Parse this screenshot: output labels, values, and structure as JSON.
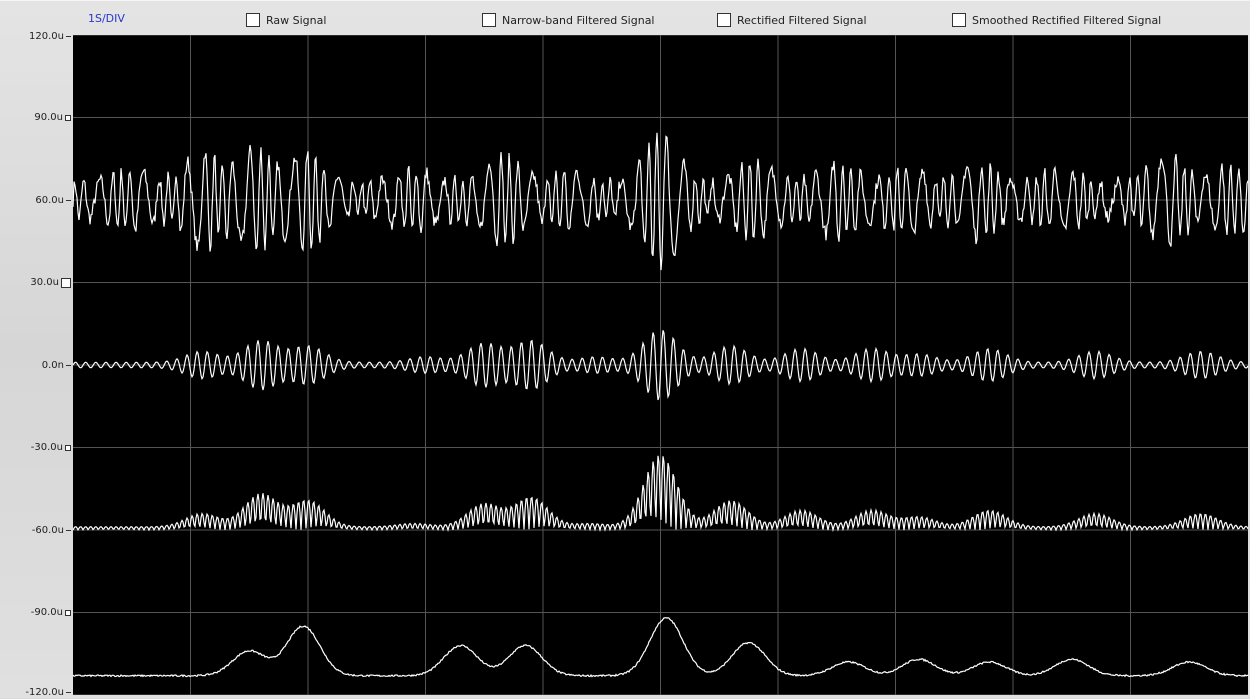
{
  "header": {
    "div_label": "1S/DIV",
    "legend": [
      {
        "label": "Raw Signal",
        "checked": false
      },
      {
        "label": "Narrow-band Filtered Signal",
        "checked": false
      },
      {
        "label": "Rectified Filtered Signal",
        "checked": false
      },
      {
        "label": "Smoothed Rectified Filtered Signal",
        "checked": false
      }
    ]
  },
  "chart_data": {
    "type": "line",
    "title": "",
    "xlabel": "",
    "ylabel": "",
    "ylim": [
      -120,
      120
    ],
    "y_unit": "u",
    "x_per_division": "1S/DIV",
    "grid": true,
    "y_ticks": [
      {
        "value": 120,
        "label": "120.0u",
        "marker": "dash"
      },
      {
        "value": 90,
        "label": "90.0u",
        "marker": "box"
      },
      {
        "value": 60,
        "label": "60.0u",
        "marker": "dash"
      },
      {
        "value": 30,
        "label": "30.0u",
        "marker": "big-box"
      },
      {
        "value": 0,
        "label": "0.0n",
        "marker": "dash"
      },
      {
        "value": -30,
        "label": "-30.0u",
        "marker": "box"
      },
      {
        "value": -60,
        "label": "-60.0u",
        "marker": "dash"
      },
      {
        "value": -90,
        "label": "-90.0u",
        "marker": "box"
      },
      {
        "value": -120,
        "label": "-120.0u",
        "marker": "dash"
      }
    ],
    "series": [
      {
        "offset": 60,
        "peaks": [
          [
            0.05,
            6
          ],
          [
            0.11,
            14
          ],
          [
            0.155,
            15
          ],
          [
            0.2,
            14
          ],
          [
            0.29,
            6
          ],
          [
            0.365,
            12
          ],
          [
            0.42,
            6
          ],
          [
            0.5,
            22
          ],
          [
            0.58,
            9
          ],
          [
            0.65,
            9
          ],
          [
            0.71,
            8
          ],
          [
            0.77,
            9
          ],
          [
            0.84,
            6
          ],
          [
            0.93,
            12
          ],
          [
            0.985,
            8
          ]
        ],
        "base": 5
      },
      {
        "offset": 0,
        "peaks": [
          [
            0.11,
            4
          ],
          [
            0.16,
            8
          ],
          [
            0.2,
            6
          ],
          [
            0.3,
            2
          ],
          [
            0.35,
            7
          ],
          [
            0.39,
            8
          ],
          [
            0.445,
            2
          ],
          [
            0.5,
            12
          ],
          [
            0.56,
            6
          ],
          [
            0.62,
            5
          ],
          [
            0.68,
            5
          ],
          [
            0.72,
            3
          ],
          [
            0.78,
            5
          ],
          [
            0.87,
            4
          ],
          [
            0.96,
            4
          ]
        ],
        "base": 1
      },
      {
        "offset": -60,
        "peaks": [
          [
            0.11,
            4
          ],
          [
            0.16,
            10
          ],
          [
            0.2,
            8
          ],
          [
            0.29,
            1
          ],
          [
            0.35,
            7
          ],
          [
            0.39,
            9
          ],
          [
            0.44,
            1
          ],
          [
            0.5,
            22
          ],
          [
            0.56,
            8
          ],
          [
            0.62,
            5
          ],
          [
            0.68,
            5
          ],
          [
            0.72,
            3
          ],
          [
            0.78,
            5
          ],
          [
            0.87,
            4
          ],
          [
            0.96,
            4
          ]
        ],
        "base": 1
      },
      {
        "offset": -114,
        "peaks": [
          [
            0.15,
            9
          ],
          [
            0.196,
            18
          ],
          [
            0.33,
            11
          ],
          [
            0.385,
            11
          ],
          [
            0.505,
            21
          ],
          [
            0.575,
            12
          ],
          [
            0.66,
            5
          ],
          [
            0.72,
            6
          ],
          [
            0.78,
            5
          ],
          [
            0.85,
            6
          ],
          [
            0.95,
            5
          ]
        ],
        "base": 1
      }
    ]
  }
}
